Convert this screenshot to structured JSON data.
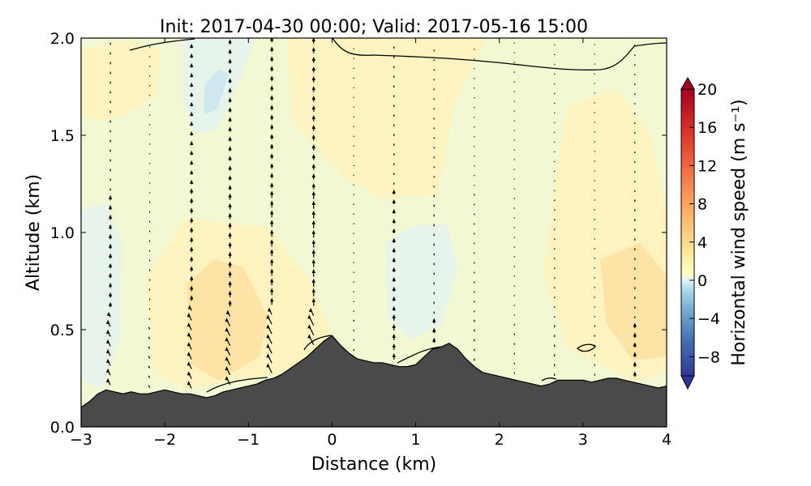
{
  "chart_data": {
    "type": "heatmap",
    "title": "Init: 2017-04-30 00:00; Valid: 2017-05-16 15:00",
    "xlabel": "Distance (km)",
    "ylabel": "Altitude (km)",
    "xlim": [
      -3,
      4
    ],
    "ylim": [
      0,
      2
    ],
    "xticks": [
      "−3",
      "−2",
      "−1",
      "0",
      "1",
      "2",
      "3",
      "4"
    ],
    "xtick_values": [
      -3,
      -2,
      -1,
      0,
      1,
      2,
      3,
      4
    ],
    "yticks": [
      "0.0",
      "0.5",
      "1.0",
      "1.5",
      "2.0"
    ],
    "ytick_values": [
      0.0,
      0.5,
      1.0,
      1.5,
      2.0
    ],
    "colorbar": {
      "label": "Horizontal wind speed (m s⁻¹)",
      "range": [
        -10,
        20
      ],
      "ticks": [
        "−8",
        "−4",
        "0",
        "4",
        "8",
        "12",
        "16",
        "20"
      ],
      "tick_values": [
        -8,
        -4,
        0,
        4,
        8,
        12,
        16,
        20
      ],
      "colormap": "RdYlBu_r",
      "extend": "both"
    },
    "terrain": {
      "color": "#4a4a4a",
      "x": [
        -3.0,
        -2.9,
        -2.8,
        -2.7,
        -2.6,
        -2.5,
        -2.4,
        -2.3,
        -2.2,
        -2.1,
        -2.0,
        -1.9,
        -1.8,
        -1.7,
        -1.6,
        -1.5,
        -1.4,
        -1.3,
        -1.2,
        -1.1,
        -1.0,
        -0.9,
        -0.8,
        -0.7,
        -0.6,
        -0.5,
        -0.4,
        -0.3,
        -0.2,
        -0.1,
        0.0,
        0.1,
        0.2,
        0.3,
        0.4,
        0.5,
        0.6,
        0.7,
        0.8,
        0.9,
        1.0,
        1.1,
        1.2,
        1.3,
        1.4,
        1.5,
        1.6,
        1.7,
        1.8,
        1.9,
        2.0,
        2.1,
        2.2,
        2.3,
        2.4,
        2.5,
        2.6,
        2.7,
        2.8,
        2.9,
        3.0,
        3.1,
        3.2,
        3.3,
        3.4,
        3.5,
        3.6,
        3.7,
        3.8,
        3.9,
        4.0
      ],
      "y": [
        0.1,
        0.13,
        0.17,
        0.19,
        0.18,
        0.17,
        0.18,
        0.17,
        0.17,
        0.18,
        0.19,
        0.18,
        0.17,
        0.17,
        0.16,
        0.15,
        0.16,
        0.18,
        0.19,
        0.2,
        0.21,
        0.22,
        0.24,
        0.25,
        0.27,
        0.3,
        0.33,
        0.36,
        0.4,
        0.44,
        0.47,
        0.42,
        0.38,
        0.35,
        0.34,
        0.33,
        0.33,
        0.32,
        0.31,
        0.31,
        0.32,
        0.36,
        0.4,
        0.41,
        0.43,
        0.4,
        0.35,
        0.31,
        0.28,
        0.27,
        0.26,
        0.25,
        0.24,
        0.23,
        0.22,
        0.21,
        0.22,
        0.24,
        0.24,
        0.24,
        0.24,
        0.23,
        0.24,
        0.25,
        0.25,
        0.24,
        0.23,
        0.22,
        0.21,
        0.2,
        0.21
      ]
    },
    "wind_field": {
      "description_columns_x": [
        -2.65,
        -2.18,
        -1.68,
        -1.22,
        -0.72,
        -0.22,
        0.26,
        0.74,
        1.22,
        1.7,
        2.18,
        2.66,
        3.14,
        3.62
      ]
    }
  }
}
